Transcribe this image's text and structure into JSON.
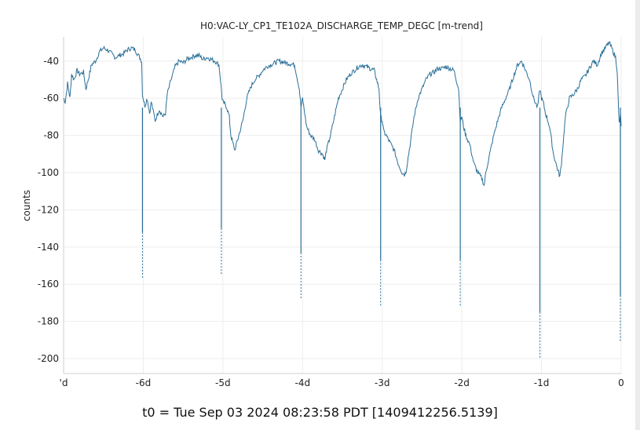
{
  "chart_data": {
    "type": "line",
    "title": "H0:VAC-LY_CP1_TE102A_DISCHARGE_TEMP_DEGC [m-trend]",
    "ylabel": "counts",
    "xlabel": "t0 = Tue Sep 03 2024 08:23:58 PDT [1409412256.5139]",
    "xlim": [
      -7,
      0
    ],
    "ylim": [
      -208,
      -27
    ],
    "x_ticks": [
      {
        "value": -7,
        "label": "'d"
      },
      {
        "value": -6,
        "label": "-6d"
      },
      {
        "value": -5,
        "label": "-5d"
      },
      {
        "value": -4,
        "label": "-4d"
      },
      {
        "value": -3,
        "label": "-3d"
      },
      {
        "value": -2,
        "label": "-2d"
      },
      {
        "value": -1,
        "label": "-1d"
      },
      {
        "value": 0,
        "label": "0"
      }
    ],
    "y_ticks": [
      {
        "value": -40,
        "label": "-40"
      },
      {
        "value": -60,
        "label": "-60"
      },
      {
        "value": -80,
        "label": "-80"
      },
      {
        "value": -100,
        "label": "-100"
      },
      {
        "value": -120,
        "label": "-120"
      },
      {
        "value": -140,
        "label": "-140"
      },
      {
        "value": -160,
        "label": "-160"
      },
      {
        "value": -180,
        "label": "-180"
      },
      {
        "value": -200,
        "label": "-200"
      }
    ],
    "grid": true,
    "line_color": "#2a6f97",
    "series": [
      {
        "x": [
          -7.0,
          -6.98,
          -6.95,
          -6.92,
          -6.9,
          -6.87,
          -6.83,
          -6.8,
          -6.75,
          -6.72,
          -6.68,
          -6.65,
          -6.6,
          -6.55,
          -6.5,
          -6.45,
          -6.4,
          -6.35,
          -6.3,
          -6.25,
          -6.2,
          -6.15,
          -6.1,
          -6.06,
          -6.02,
          -6.01,
          -6.0,
          -5.98,
          -5.95,
          -5.92,
          -5.9,
          -5.85,
          -5.8,
          -5.75,
          -5.72,
          -5.7,
          -5.65,
          -5.6,
          -5.55,
          -5.5,
          -5.45,
          -5.4,
          -5.35,
          -5.3,
          -5.25,
          -5.2,
          -5.1,
          -5.05,
          -5.03,
          -5.01,
          -5.0,
          -4.98,
          -4.95,
          -4.92,
          -4.9,
          -4.87,
          -4.85,
          -4.82,
          -4.8,
          -4.75,
          -4.7,
          -4.65,
          -4.6,
          -4.55,
          -4.5,
          -4.45,
          -4.4,
          -4.3,
          -4.2,
          -4.1,
          -4.04,
          -4.02,
          -4.0,
          -3.98,
          -3.95,
          -3.9,
          -3.85,
          -3.8,
          -3.75,
          -3.72,
          -3.7,
          -3.65,
          -3.6,
          -3.55,
          -3.5,
          -3.45,
          -3.4,
          -3.35,
          -3.3,
          -3.25,
          -3.2,
          -3.1,
          -3.04,
          -3.02,
          -3.0,
          -2.98,
          -2.95,
          -2.9,
          -2.85,
          -2.8,
          -2.75,
          -2.72,
          -2.7,
          -2.65,
          -2.6,
          -2.55,
          -2.5,
          -2.45,
          -2.4,
          -2.35,
          -2.3,
          -2.25,
          -2.2,
          -2.1,
          -2.04,
          -2.02,
          -2.0,
          -1.98,
          -1.95,
          -1.9,
          -1.85,
          -1.8,
          -1.75,
          -1.72,
          -1.7,
          -1.65,
          -1.6,
          -1.55,
          -1.5,
          -1.45,
          -1.4,
          -1.35,
          -1.3,
          -1.25,
          -1.2,
          -1.15,
          -1.1,
          -1.05,
          -1.02,
          -1.0,
          -0.98,
          -0.95,
          -0.9,
          -0.85,
          -0.8,
          -0.77,
          -0.75,
          -0.72,
          -0.7,
          -0.65,
          -0.6,
          -0.55,
          -0.5,
          -0.45,
          -0.4,
          -0.35,
          -0.3,
          -0.25,
          -0.2,
          -0.15,
          -0.1,
          -0.07,
          -0.05,
          -0.03,
          -0.02,
          -0.01,
          0.0
        ],
        "y": [
          -60,
          -62,
          -52,
          -60,
          -47,
          -50,
          -45,
          -47,
          -46,
          -55,
          -48,
          -42,
          -40,
          -35,
          -33,
          -34,
          -36,
          -38,
          -37,
          -36,
          -34,
          -33,
          -34,
          -37,
          -40,
          -58,
          -60,
          -64,
          -60,
          -68,
          -62,
          -72,
          -66,
          -70,
          -68,
          -58,
          -50,
          -43,
          -40,
          -41,
          -39,
          -38,
          -37,
          -37,
          -39,
          -38,
          -40,
          -42,
          -50,
          -60,
          -62,
          -63,
          -65,
          -70,
          -80,
          -85,
          -88,
          -83,
          -80,
          -72,
          -60,
          -54,
          -50,
          -48,
          -45,
          -43,
          -42,
          -40,
          -41,
          -42,
          -55,
          -65,
          -60,
          -66,
          -75,
          -80,
          -82,
          -88,
          -90,
          -93,
          -88,
          -80,
          -70,
          -60,
          -55,
          -50,
          -47,
          -45,
          -43,
          -42,
          -43,
          -45,
          -55,
          -70,
          -72,
          -78,
          -80,
          -84,
          -88,
          -95,
          -100,
          -101,
          -99,
          -85,
          -70,
          -60,
          -55,
          -50,
          -47,
          -46,
          -44,
          -44,
          -43,
          -45,
          -55,
          -72,
          -70,
          -75,
          -80,
          -85,
          -95,
          -100,
          -103,
          -107,
          -100,
          -90,
          -80,
          -72,
          -65,
          -60,
          -55,
          -48,
          -42,
          -40,
          -45,
          -50,
          -60,
          -65,
          -55,
          -60,
          -62,
          -68,
          -75,
          -90,
          -98,
          -102,
          -95,
          -80,
          -70,
          -60,
          -58,
          -55,
          -50,
          -48,
          -44,
          -40,
          -42,
          -36,
          -33,
          -30,
          -35,
          -38,
          -45,
          -70,
          -74,
          -68,
          -75
        ],
        "spikes": [
          {
            "x": -6.01,
            "to": -157
          },
          {
            "x": -5.02,
            "to": -155
          },
          {
            "x": -4.02,
            "to": -168
          },
          {
            "x": -3.02,
            "to": -172
          },
          {
            "x": -2.02,
            "to": -172
          },
          {
            "x": -1.02,
            "to": -200
          },
          {
            "x": -0.01,
            "to": -191
          }
        ]
      }
    ]
  },
  "t0_label": "t0 = Tue Sep 03 2024 08:23:58 PDT [1409412256.5139]"
}
